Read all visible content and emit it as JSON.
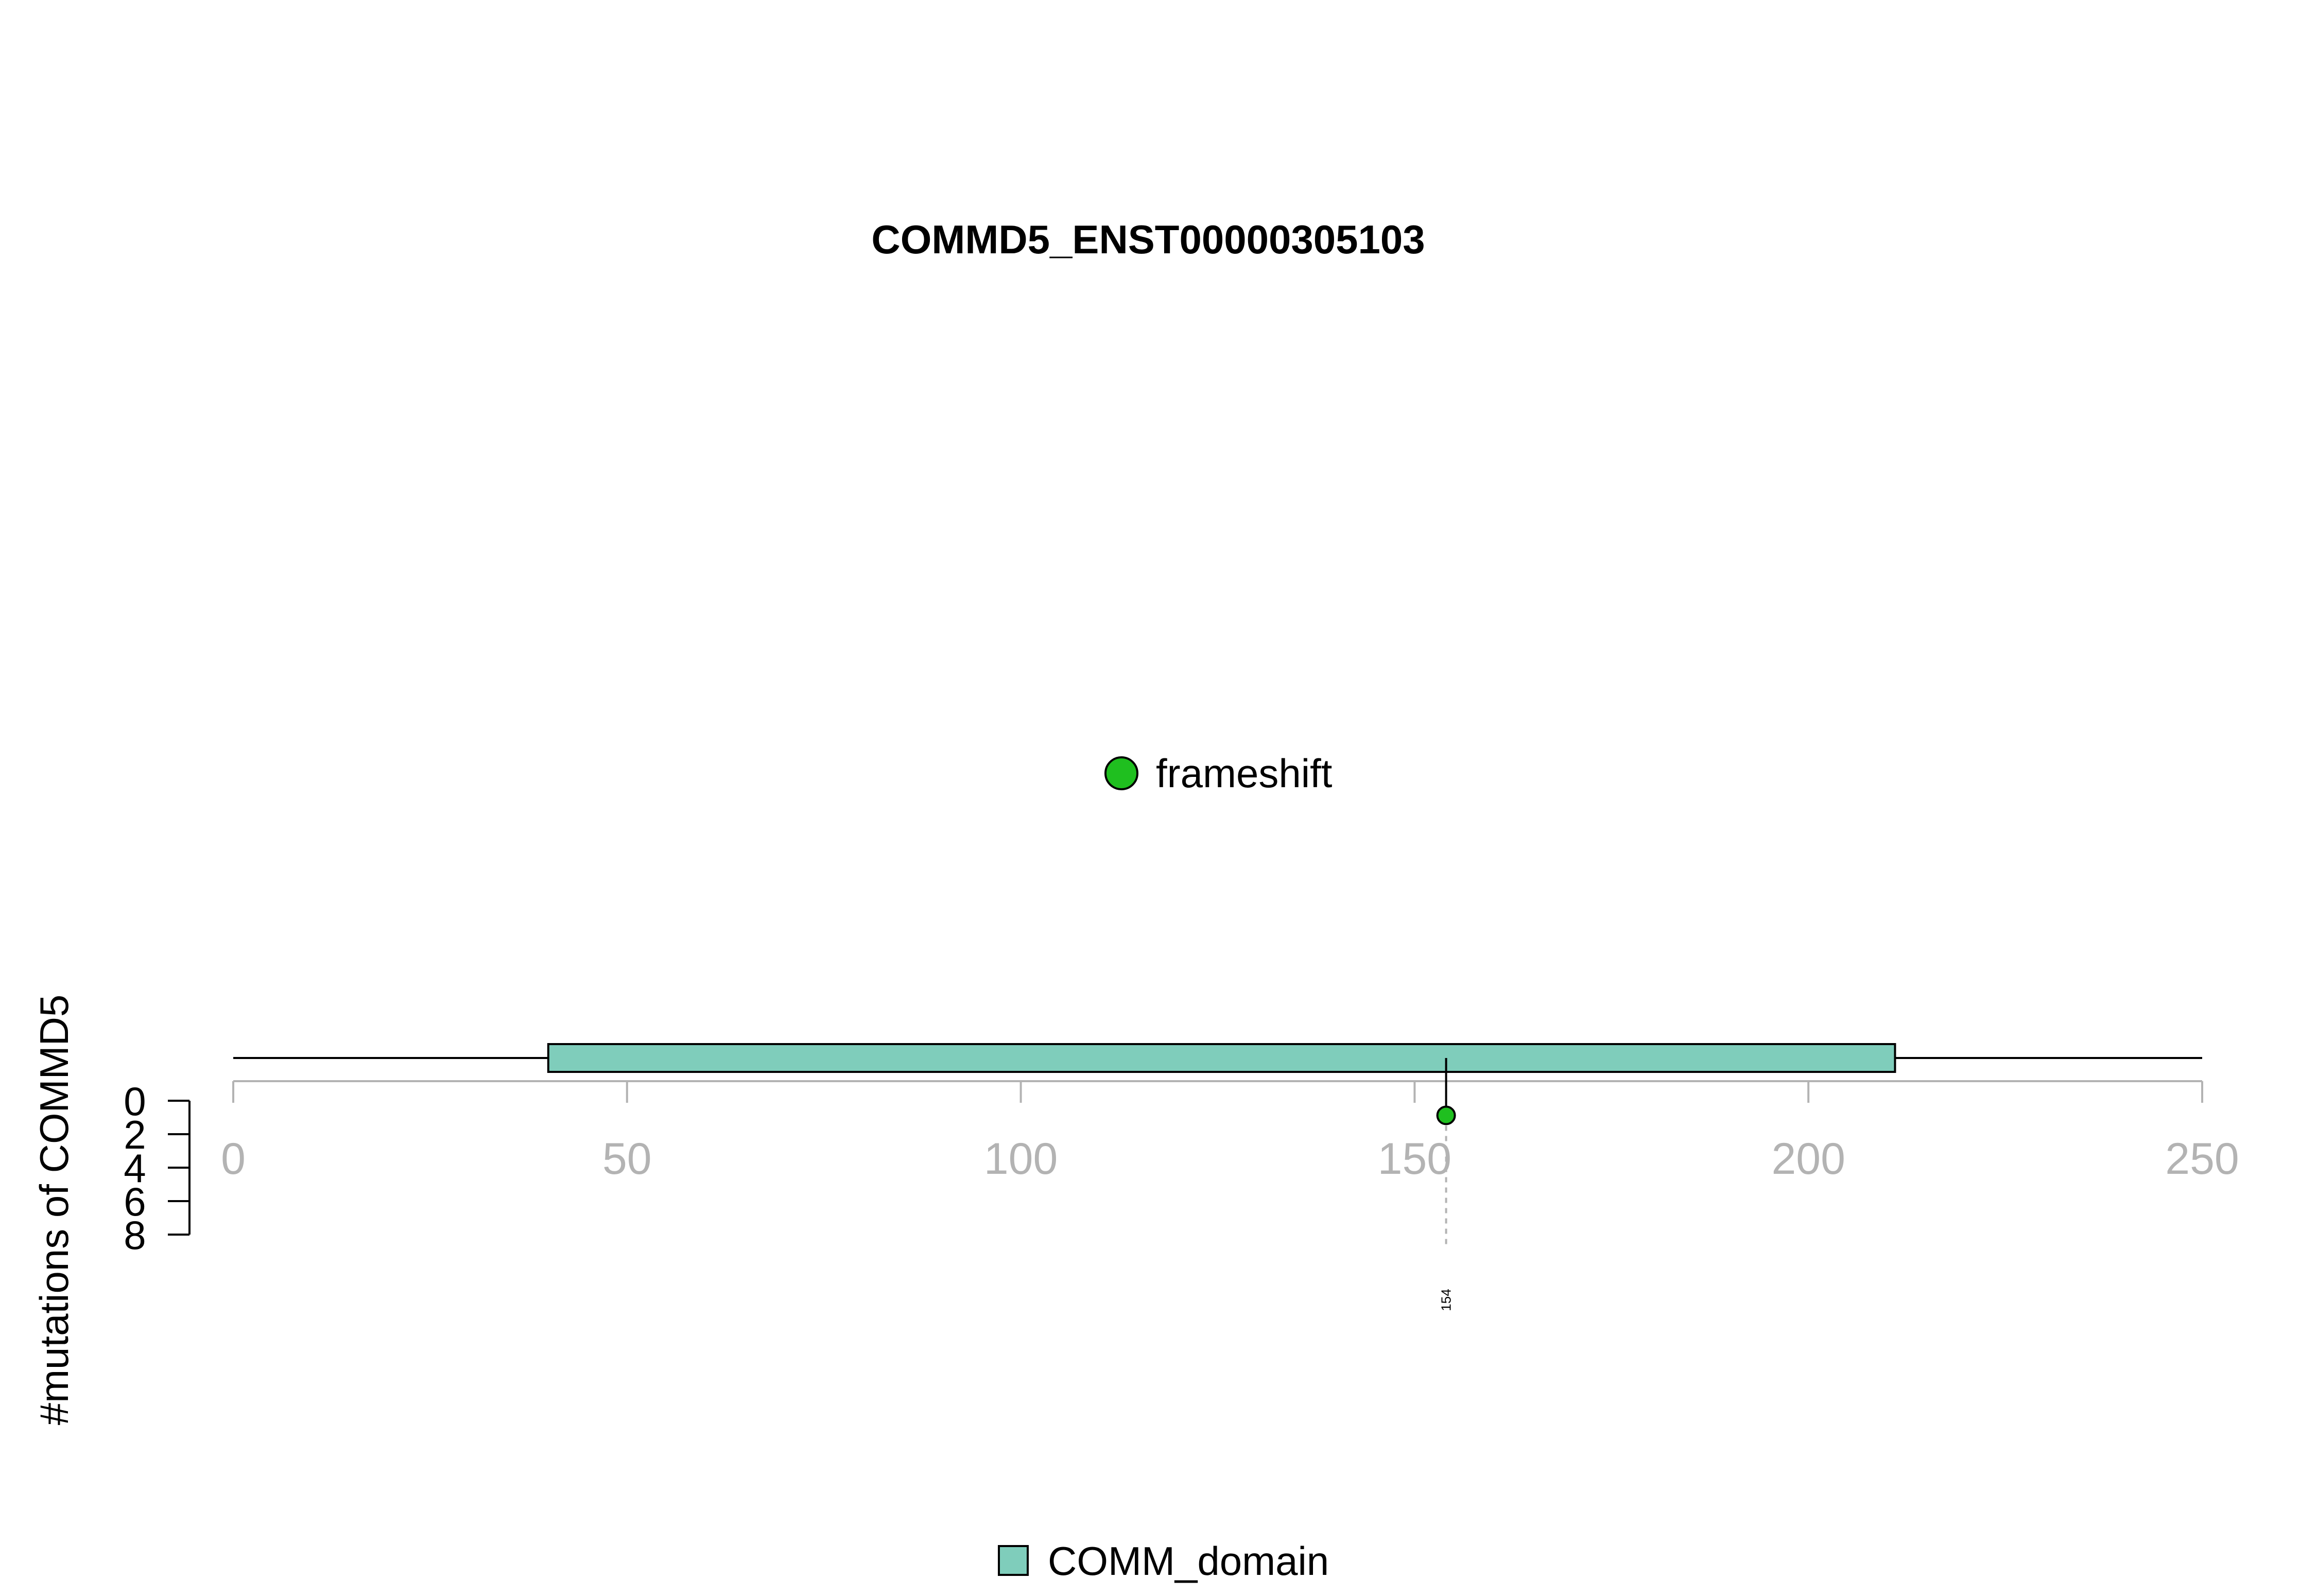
{
  "chart_data": {
    "type": "lollipop",
    "title": "COMMD5_ENST00000305103",
    "ylabel": "#mutations of COMMD5",
    "protein_length": 250,
    "xlim": [
      0,
      250
    ],
    "x_ticks": [
      0,
      50,
      100,
      150,
      200,
      250
    ],
    "y_ticks": [
      0,
      2,
      4,
      6,
      8
    ],
    "ylim": [
      0,
      8
    ],
    "domains": [
      {
        "name": "COMM_domain",
        "start": 40,
        "end": 211,
        "color": "#7fcdbb"
      }
    ],
    "mutations": [
      {
        "position": 154,
        "count": 1,
        "type": "frameshift",
        "color": "#1fbf1f",
        "label": "154"
      }
    ],
    "mutation_legend": [
      {
        "label": "frameshift",
        "color": "#1fbf1f"
      }
    ],
    "domain_legend": [
      {
        "label": "COMM_domain",
        "color": "#7fcdbb"
      }
    ]
  }
}
